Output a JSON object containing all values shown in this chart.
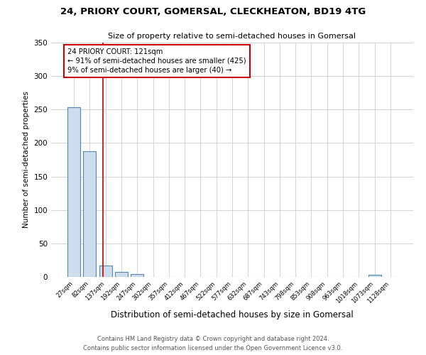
{
  "title": "24, PRIORY COURT, GOMERSAL, CLECKHEATON, BD19 4TG",
  "subtitle": "Size of property relative to semi-detached houses in Gomersal",
  "xlabel": "Distribution of semi-detached houses by size in Gomersal",
  "ylabel": "Number of semi-detached properties",
  "bar_labels": [
    "27sqm",
    "82sqm",
    "137sqm",
    "192sqm",
    "247sqm",
    "302sqm",
    "357sqm",
    "412sqm",
    "467sqm",
    "522sqm",
    "577sqm",
    "632sqm",
    "687sqm",
    "743sqm",
    "798sqm",
    "853sqm",
    "908sqm",
    "963sqm",
    "1018sqm",
    "1073sqm",
    "1128sqm"
  ],
  "bar_values": [
    253,
    188,
    17,
    7,
    4,
    0,
    0,
    0,
    0,
    0,
    0,
    0,
    0,
    0,
    0,
    0,
    0,
    0,
    0,
    3,
    0
  ],
  "bar_color": "#ccdded",
  "bar_edge_color": "#5588aa",
  "background_color": "#ffffff",
  "grid_color": "#cccccc",
  "red_line_x": 1.85,
  "annotation_text": "24 PRIORY COURT: 121sqm\n← 91% of semi-detached houses are smaller (425)\n9% of semi-detached houses are larger (40) →",
  "annotation_box_color": "#ffffff",
  "annotation_box_edge_color": "#cc0000",
  "ylim": [
    0,
    350
  ],
  "yticks": [
    0,
    50,
    100,
    150,
    200,
    250,
    300,
    350
  ],
  "footer_line1": "Contains HM Land Registry data © Crown copyright and database right 2024.",
  "footer_line2": "Contains public sector information licensed under the Open Government Licence v3.0."
}
